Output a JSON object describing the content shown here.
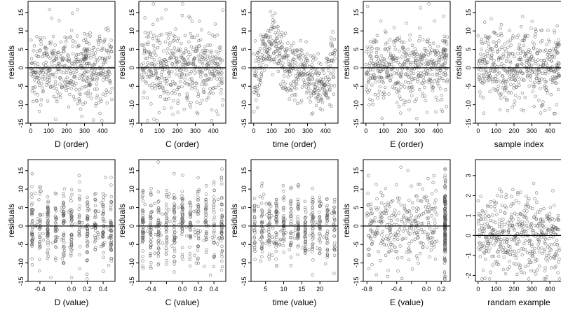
{
  "figure": {
    "point_color": "#555555",
    "zero_line_color": "#000000",
    "panel_border_color": "#000000"
  },
  "chart_data": [
    {
      "type": "scatter",
      "xlabel": "D (order)",
      "ylabel": "residuals",
      "xlim": [
        -15,
        470
      ],
      "ylim": [
        -15,
        18
      ],
      "x_ticks": [
        0,
        100,
        200,
        300,
        400
      ],
      "x_tick_labels": [
        "0",
        "100",
        "200",
        "300",
        "400"
      ],
      "y_ticks": [
        -15,
        -10,
        -5,
        0,
        5,
        10,
        15
      ],
      "y_tick_labels": [
        "-15",
        "-10",
        "-5",
        "0",
        "5",
        "10",
        "15"
      ],
      "hline": 0,
      "n_points": 455,
      "x_mode": "index",
      "spread": 5,
      "clusters": [
        {
          "x": 310,
          "y": 4,
          "n": 25,
          "sx": 10,
          "sy": 2
        }
      ]
    },
    {
      "type": "scatter",
      "xlabel": "C (order)",
      "ylabel": "residuals",
      "xlim": [
        -15,
        470
      ],
      "ylim": [
        -15,
        18
      ],
      "x_ticks": [
        0,
        100,
        200,
        300,
        400
      ],
      "x_tick_labels": [
        "0",
        "100",
        "200",
        "300",
        "400"
      ],
      "y_ticks": [
        -15,
        -10,
        -5,
        0,
        5,
        10,
        15
      ],
      "y_tick_labels": [
        "-15",
        "-10",
        "-5",
        "0",
        "5",
        "10",
        "15"
      ],
      "hline": 0,
      "n_points": 455,
      "x_mode": "index",
      "spread": 5.5,
      "clusters": []
    },
    {
      "type": "scatter",
      "xlabel": "time (order)",
      "ylabel": "residuals",
      "xlim": [
        -15,
        470
      ],
      "ylim": [
        -15,
        18
      ],
      "x_ticks": [
        0,
        100,
        200,
        300,
        400
      ],
      "x_tick_labels": [
        "0",
        "100",
        "200",
        "300",
        "400"
      ],
      "y_ticks": [
        -15,
        -10,
        -5,
        0,
        5,
        10,
        15
      ],
      "y_tick_labels": [
        "-15",
        "-10",
        "-5",
        "0",
        "5",
        "10",
        "15"
      ],
      "hline": 0,
      "n_points": 455,
      "x_mode": "wave",
      "spread": 4,
      "clusters": []
    },
    {
      "type": "scatter",
      "xlabel": "E (order)",
      "ylabel": "residuals",
      "xlim": [
        -15,
        470
      ],
      "ylim": [
        -15,
        18
      ],
      "x_ticks": [
        0,
        100,
        200,
        300,
        400
      ],
      "x_tick_labels": [
        "0",
        "100",
        "200",
        "300",
        "400"
      ],
      "y_ticks": [
        -15,
        -10,
        -5,
        0,
        5,
        10,
        15
      ],
      "y_tick_labels": [
        "-15",
        "-10",
        "-5",
        "0",
        "5",
        "10",
        "15"
      ],
      "hline": 0,
      "n_points": 455,
      "x_mode": "index",
      "spread": 5,
      "clusters": [
        {
          "x": 440,
          "y": 4,
          "n": 18,
          "sx": 6,
          "sy": 2
        }
      ]
    },
    {
      "type": "scatter",
      "xlabel": "sample index",
      "ylabel": "residuals",
      "xlim": [
        -15,
        470
      ],
      "ylim": [
        -15,
        18
      ],
      "x_ticks": [
        0,
        100,
        200,
        300,
        400
      ],
      "x_tick_labels": [
        "0",
        "100",
        "200",
        "300",
        "400"
      ],
      "y_ticks": [
        -15,
        -10,
        -5,
        0,
        5,
        10,
        15
      ],
      "y_tick_labels": [
        "-15",
        "-10",
        "-5",
        "0",
        "5",
        "10",
        "15"
      ],
      "hline": 0,
      "n_points": 455,
      "x_mode": "index",
      "spread": 5,
      "clusters": [
        {
          "x": 440,
          "y": 4,
          "n": 15,
          "sx": 6,
          "sy": 2
        }
      ]
    },
    {
      "type": "scatter",
      "xlabel": "D (value)",
      "ylabel": "residuals",
      "xlim": [
        -0.55,
        0.55
      ],
      "ylim": [
        -15,
        18
      ],
      "x_ticks": [
        -0.4,
        -0.2,
        0.0,
        0.2,
        0.4
      ],
      "x_tick_labels": [
        "-0.4",
        "",
        "0.0",
        "0.2",
        "0.4"
      ],
      "y_ticks": [
        -15,
        -10,
        -5,
        0,
        5,
        10,
        15
      ],
      "y_tick_labels": [
        "-15",
        "-10",
        "-5",
        "0",
        "5",
        "10",
        "15"
      ],
      "hline": 0,
      "n_points": 400,
      "x_mode": "columns",
      "spread": 5,
      "columns": [
        -0.5,
        -0.4,
        -0.3,
        -0.2,
        -0.1,
        0.0,
        0.1,
        0.2,
        0.3,
        0.4,
        0.5
      ]
    },
    {
      "type": "scatter",
      "xlabel": "C (value)",
      "ylabel": "residuals",
      "xlim": [
        -0.55,
        0.55
      ],
      "ylim": [
        -15,
        18
      ],
      "x_ticks": [
        -0.4,
        -0.2,
        0.0,
        0.2,
        0.4
      ],
      "x_tick_labels": [
        "-0.4",
        "",
        "0.0",
        "0.2",
        "0.4"
      ],
      "y_ticks": [
        -15,
        -10,
        -5,
        0,
        5,
        10,
        15
      ],
      "y_tick_labels": [
        "-15",
        "-10",
        "-5",
        "0",
        "5",
        "10",
        "15"
      ],
      "hline": 0,
      "n_points": 400,
      "x_mode": "columns",
      "spread": 5.5,
      "columns": [
        -0.5,
        -0.4,
        -0.3,
        -0.2,
        -0.1,
        0.0,
        0.1,
        0.2,
        0.3,
        0.4,
        0.5
      ]
    },
    {
      "type": "scatter",
      "xlabel": "time (value)",
      "ylabel": "residuals",
      "xlim": [
        1,
        25
      ],
      "ylim": [
        -15,
        18
      ],
      "x_ticks": [
        5,
        10,
        15,
        20
      ],
      "x_tick_labels": [
        "5",
        "10",
        "15",
        "20"
      ],
      "y_ticks": [
        -15,
        -10,
        -5,
        0,
        5,
        10,
        15
      ],
      "y_tick_labels": [
        "-15",
        "-10",
        "-5",
        "0",
        "5",
        "10",
        "15"
      ],
      "hline": 0,
      "n_points": 400,
      "x_mode": "columns",
      "spread": 4.5,
      "columns": [
        2,
        4,
        6,
        8,
        10,
        12,
        14,
        16,
        18,
        20,
        22,
        24
      ]
    },
    {
      "type": "scatter",
      "xlabel": "E (value)",
      "ylabel": "residuals",
      "xlim": [
        -0.85,
        0.32
      ],
      "ylim": [
        -15,
        18
      ],
      "x_ticks": [
        -0.8,
        -0.6,
        -0.4,
        -0.2,
        0.0,
        0.2
      ],
      "x_tick_labels": [
        "-0.8",
        "",
        "-0.4",
        "",
        "0.0",
        "0.2"
      ],
      "y_ticks": [
        -15,
        -10,
        -5,
        0,
        5,
        10,
        15
      ],
      "y_tick_labels": [
        "-15",
        "-10",
        "-5",
        "0",
        "5",
        "10",
        "15"
      ],
      "hline": 0,
      "n_points": 300,
      "x_mode": "e_value",
      "spread": 5
    },
    {
      "type": "scatter",
      "xlabel": "randam example",
      "ylabel": "",
      "xlim": [
        -15,
        470
      ],
      "ylim": [
        -2.3,
        3.8
      ],
      "x_ticks": [
        0,
        100,
        200,
        300,
        400
      ],
      "x_tick_labels": [
        "0",
        "100",
        "200",
        "300",
        "400"
      ],
      "y_ticks": [
        -2,
        -1,
        0,
        1,
        2,
        3
      ],
      "y_tick_labels": [
        "-2",
        "-1",
        "0",
        "1",
        "2",
        "3"
      ],
      "hline": 0,
      "n_points": 455,
      "x_mode": "index",
      "spread": 1.0,
      "clusters": []
    }
  ]
}
